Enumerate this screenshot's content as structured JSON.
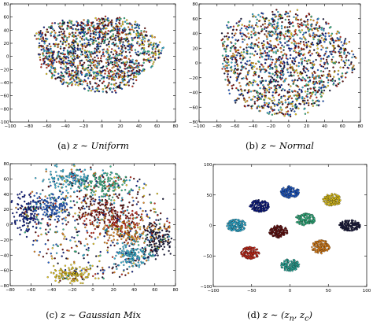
{
  "chart_data": [
    {
      "type": "scatter",
      "caption": {
        "label": "(a)",
        "math": "z ∼ Uniform"
      },
      "xlim": [
        -100,
        80
      ],
      "ylim": [
        -100,
        80
      ],
      "xticks": [
        "−100",
        "−80",
        "−60",
        "−40",
        "−20",
        "0",
        "20",
        "40",
        "60",
        "80"
      ],
      "yticks": [
        "80",
        "60",
        "40",
        "20",
        "0",
        "−20",
        "−40",
        "−60",
        "−80",
        "−100"
      ],
      "grid": false,
      "layout": "single-blob",
      "blob": {
        "cx": -5,
        "cy": 5,
        "rx": 68,
        "ry": 58
      },
      "colors": [
        "#0b1a8c",
        "#1f5fd6",
        "#2fb8e0",
        "#35c08a",
        "#f2d21b",
        "#f08a1a",
        "#d42a1a",
        "#6b0f0f",
        "#1a1a40"
      ]
    },
    {
      "type": "scatter",
      "caption": {
        "label": "(b)",
        "math": "z ∼ Normal"
      },
      "xlim": [
        -100,
        80
      ],
      "ylim": [
        -80,
        80
      ],
      "xticks": [
        "−100",
        "−80",
        "−60",
        "−40",
        "−20",
        "0",
        "20",
        "40",
        "60",
        "80"
      ],
      "yticks": [
        "80",
        "60",
        "40",
        "20",
        "0",
        "−20",
        "−40",
        "−60",
        "−80"
      ],
      "grid": false,
      "layout": "single-blob",
      "blob": {
        "cx": -5,
        "cy": 2,
        "rx": 75,
        "ry": 72
      },
      "colors": [
        "#0b1a8c",
        "#1f5fd6",
        "#2fb8e0",
        "#35c08a",
        "#f2d21b",
        "#f08a1a",
        "#d42a1a",
        "#6b0f0f",
        "#1a1a40"
      ]
    },
    {
      "type": "scatter",
      "caption": {
        "label": "(c)",
        "math": "z ∼ Gaussian Mix"
      },
      "xlim": [
        -80,
        80
      ],
      "ylim": [
        -80,
        80
      ],
      "xticks": [
        "−80",
        "−60",
        "−40",
        "−20",
        "0",
        "20",
        "40",
        "60",
        "80"
      ],
      "yticks": [
        "80",
        "60",
        "40",
        "20",
        "0",
        "−20",
        "−40",
        "−60",
        "−80"
      ],
      "grid": false,
      "layout": "partial-clusters",
      "clusters": [
        {
          "color": "#2fb8e0",
          "cx": -20,
          "cy": 60,
          "rx": 22,
          "ry": 14
        },
        {
          "color": "#35c08a",
          "cx": 10,
          "cy": 52,
          "rx": 22,
          "ry": 16
        },
        {
          "color": "#0b1a8c",
          "cx": -65,
          "cy": 15,
          "rx": 12,
          "ry": 22
        },
        {
          "color": "#1f5fd6",
          "cx": -40,
          "cy": 22,
          "rx": 16,
          "ry": 16
        },
        {
          "color": "#6b0f0f",
          "cx": 10,
          "cy": 20,
          "rx": 30,
          "ry": 18
        },
        {
          "color": "#d42a1a",
          "cx": 20,
          "cy": 5,
          "rx": 30,
          "ry": 18
        },
        {
          "color": "#f08a1a",
          "cx": 30,
          "cy": -10,
          "rx": 28,
          "ry": 18
        },
        {
          "color": "#1a1a40",
          "cx": 62,
          "cy": -20,
          "rx": 12,
          "ry": 22
        },
        {
          "color": "#f2d21b",
          "cx": -20,
          "cy": -65,
          "rx": 18,
          "ry": 10
        },
        {
          "color": "#2fb8e0",
          "cx": 40,
          "cy": -40,
          "rx": 18,
          "ry": 14
        }
      ],
      "colors": [
        "#0b1a8c",
        "#1f5fd6",
        "#2fb8e0",
        "#35c08a",
        "#f2d21b",
        "#f08a1a",
        "#d42a1a",
        "#6b0f0f",
        "#1a1a40"
      ]
    },
    {
      "type": "scatter",
      "caption": {
        "label": "(d)",
        "math": "z ∼ (z",
        "math_sub1": "n",
        "math_mid": ", z",
        "math_sub2": "c",
        "math_end": ")"
      },
      "xlim": [
        -100,
        100
      ],
      "ylim": [
        -100,
        100
      ],
      "xticks": [
        "−100",
        "−50",
        "0",
        "50",
        "100"
      ],
      "yticks": [
        "100",
        "50",
        "0",
        "−50",
        "−100"
      ],
      "grid": false,
      "layout": "separated-clusters",
      "clusters": [
        {
          "color": "#1f5fd6",
          "cx": 0,
          "cy": 55,
          "rx": 12,
          "ry": 10
        },
        {
          "color": "#f2d21b",
          "cx": 55,
          "cy": 42,
          "rx": 12,
          "ry": 10
        },
        {
          "color": "#0b1a8c",
          "cx": -40,
          "cy": 32,
          "rx": 13,
          "ry": 10
        },
        {
          "color": "#35c08a",
          "cx": 20,
          "cy": 10,
          "rx": 13,
          "ry": 10
        },
        {
          "color": "#6b0f0f",
          "cx": -15,
          "cy": -10,
          "rx": 12,
          "ry": 10
        },
        {
          "color": "#2fb8e0",
          "cx": -70,
          "cy": 0,
          "rx": 13,
          "ry": 10
        },
        {
          "color": "#1a1a40",
          "cx": 78,
          "cy": 0,
          "rx": 14,
          "ry": 9
        },
        {
          "color": "#f08a1a",
          "cx": 40,
          "cy": -35,
          "rx": 12,
          "ry": 11
        },
        {
          "color": "#d42a1a",
          "cx": -52,
          "cy": -45,
          "rx": 12,
          "ry": 10
        },
        {
          "color": "#2fb8a8",
          "cx": 0,
          "cy": -65,
          "rx": 12,
          "ry": 10
        }
      ],
      "colors": [
        "#0b1a8c",
        "#1f5fd6",
        "#2fb8e0",
        "#35c08a",
        "#f2d21b",
        "#f08a1a",
        "#d42a1a",
        "#6b0f0f",
        "#1a1a40"
      ]
    }
  ]
}
